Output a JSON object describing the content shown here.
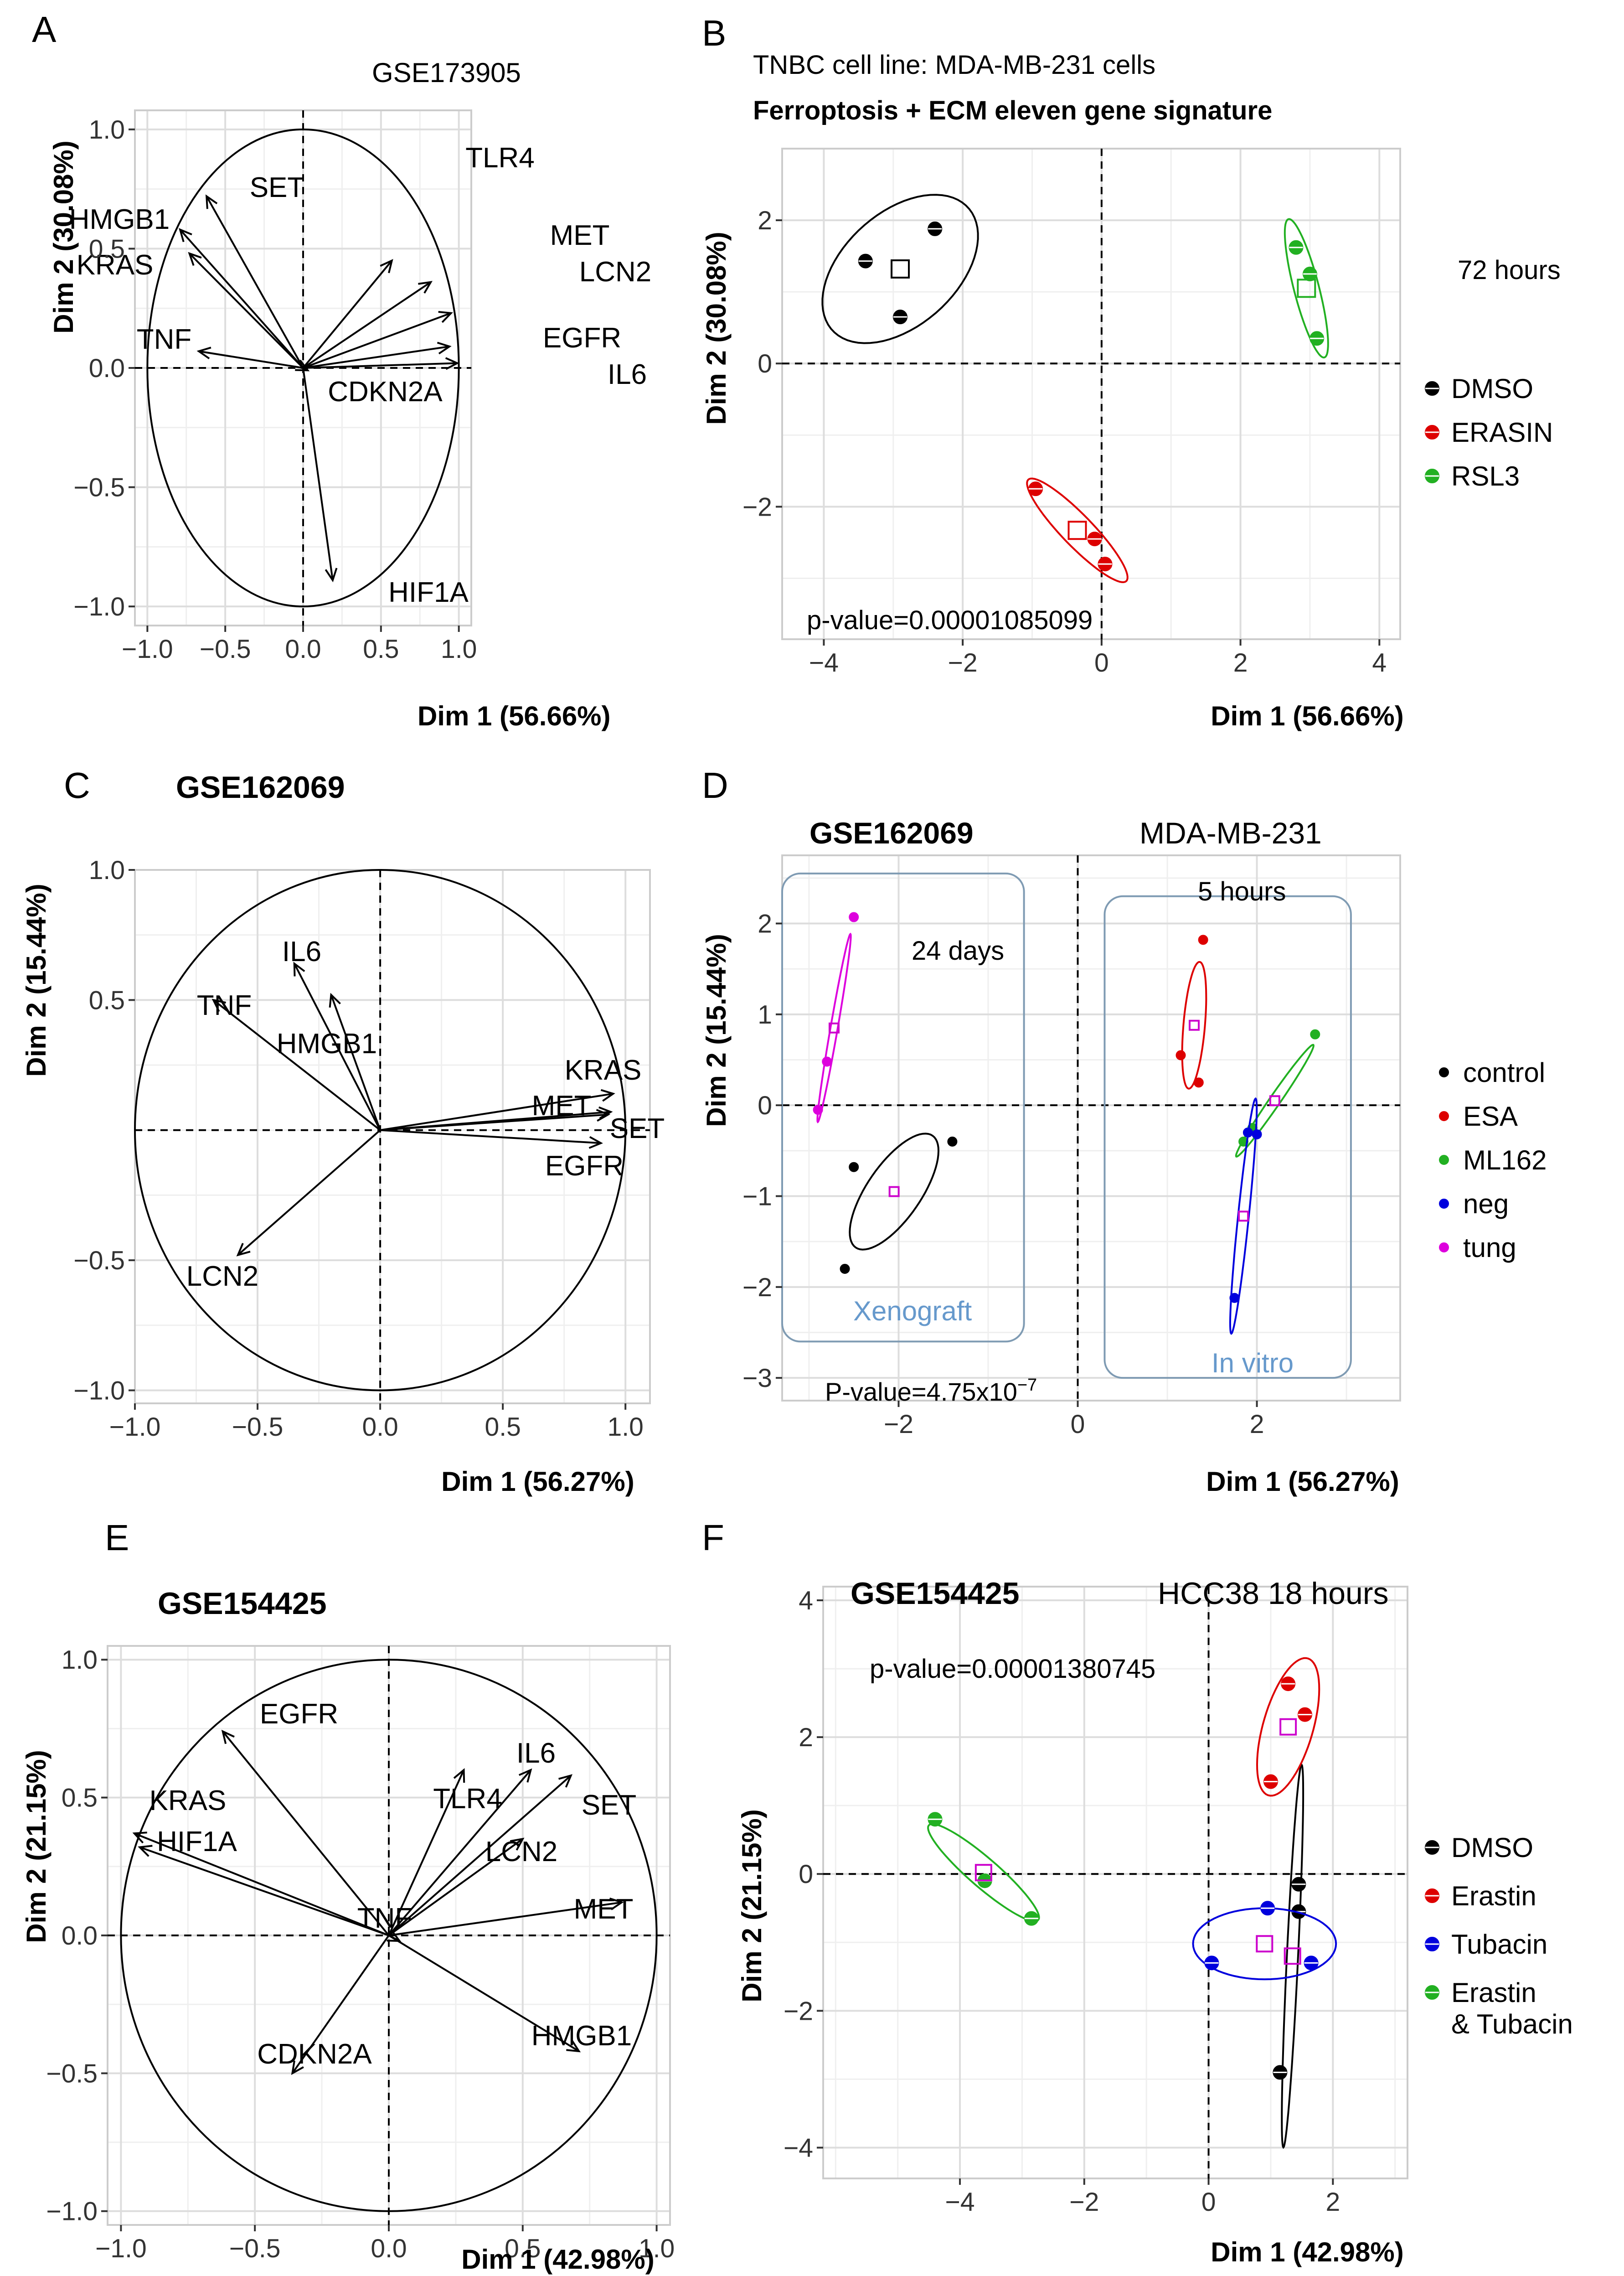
{
  "figure": {
    "panel_letters": [
      "A",
      "B",
      "C",
      "D",
      "E",
      "F"
    ]
  },
  "chart_data": [
    {
      "id": "A",
      "type": "scatter",
      "subtype": "pca-variables",
      "title": "GSE173905",
      "title_bold": false,
      "xlabel": "Dim 1 (56.66%)",
      "ylabel": "Dim 2 (30.08%)",
      "xlim": [
        -1.08,
        1.08
      ],
      "ylim": [
        -1.08,
        1.08
      ],
      "xticks": [
        -1.0,
        -0.5,
        0.0,
        0.5,
        1.0
      ],
      "yticks": [
        -1.0,
        -0.5,
        0.0,
        0.5,
        1.0
      ],
      "xtick_labels": [
        "−1.0",
        "−0.5",
        "0.0",
        "0.5",
        "1.0"
      ],
      "ytick_labels": [
        "−1.0",
        "−0.5",
        "0.0",
        "0.5",
        "1.0"
      ],
      "vectors": [
        {
          "label": "SET",
          "x": -0.62,
          "y": 0.72
        },
        {
          "label": "HMGB1",
          "x": -0.79,
          "y": 0.58
        },
        {
          "label": "KRAS",
          "x": -0.73,
          "y": 0.48
        },
        {
          "label": "TNF",
          "x": -0.67,
          "y": 0.07
        },
        {
          "label": "TLR4",
          "x": 0.57,
          "y": 0.45
        },
        {
          "label": "MET",
          "x": 0.82,
          "y": 0.36
        },
        {
          "label": "LCN2",
          "x": 0.95,
          "y": 0.23
        },
        {
          "label": "EGFR",
          "x": 0.94,
          "y": 0.09
        },
        {
          "label": "IL6",
          "x": 0.99,
          "y": 0.02
        },
        {
          "label": "CDKN2A",
          "x": 0.03,
          "y": -0.01
        },
        {
          "label": "HIF1A",
          "x": 0.19,
          "y": -0.89
        }
      ]
    },
    {
      "id": "B",
      "type": "scatter",
      "subtype": "pca-individuals",
      "title": "TNBC cell line: MDA-MB-231 cells",
      "subtitle": "Ferroptosis + ECM eleven gene signature",
      "annotation": "72 hours",
      "xlabel": "Dim 1 (56.66%)",
      "ylabel": "Dim 2 (30.08%)",
      "xlim": [
        -4.6,
        4.3
      ],
      "ylim": [
        -3.85,
        3.0
      ],
      "xticks": [
        -4,
        -2,
        0,
        2,
        4
      ],
      "yticks": [
        -2,
        0,
        2
      ],
      "xtick_labels": [
        "−4",
        "−2",
        "0",
        "2",
        "4"
      ],
      "ytick_labels": [
        "−2",
        "0",
        "2"
      ],
      "pvalue": "p-value=0.00001085099",
      "legend": [
        "DMSO",
        "ERASIN",
        "RSL3"
      ],
      "series": [
        {
          "name": "DMSO",
          "color": "#000000",
          "points": [
            [
              -3.4,
              1.43
            ],
            [
              -2.4,
              1.88
            ],
            [
              -2.9,
              0.65
            ]
          ],
          "center": [
            -2.9,
            1.32
          ],
          "ellipse": {
            "cx": -2.9,
            "cy": 1.32,
            "rx": 1.3,
            "ry": 0.8,
            "angle": 40
          }
        },
        {
          "name": "ERASIN",
          "color": "#dd0000",
          "points": [
            [
              -0.95,
              -1.75
            ],
            [
              0.05,
              -2.8
            ],
            [
              -0.1,
              -2.45
            ]
          ],
          "center": [
            -0.35,
            -2.33
          ],
          "ellipse": {
            "cx": -0.35,
            "cy": -2.33,
            "rx": 1.0,
            "ry": 0.22,
            "angle": -45
          }
        },
        {
          "name": "RSL3",
          "color": "#22b022",
          "points": [
            [
              2.8,
              1.62
            ],
            [
              3.1,
              0.35
            ],
            [
              3.0,
              1.25
            ]
          ],
          "center": [
            2.95,
            1.05
          ],
          "ellipse": {
            "cx": 2.95,
            "cy": 1.05,
            "rx": 1.0,
            "ry": 0.18,
            "angle": -75
          }
        }
      ]
    },
    {
      "id": "C",
      "type": "scatter",
      "subtype": "pca-variables",
      "title": "GSE162069",
      "title_bold": true,
      "xlabel": "Dim 1 (56.27%)",
      "ylabel": "Dim 2 (15.44%)",
      "xlim": [
        -1.0,
        1.1
      ],
      "ylim": [
        -1.05,
        1.0
      ],
      "xticks": [
        -1.0,
        -0.5,
        0.0,
        0.5,
        1.0
      ],
      "yticks": [
        -1.0,
        -0.5,
        0.5,
        1.0
      ],
      "xtick_labels": [
        "−1.0",
        "−0.5",
        "0.0",
        "0.5",
        "1.0"
      ],
      "ytick_labels": [
        "−1.0",
        "−0.5",
        "0.5",
        "1.0"
      ],
      "vectors": [
        {
          "label": "IL6",
          "x": -0.35,
          "y": 0.64
        },
        {
          "label": "TNF",
          "x": -0.68,
          "y": 0.5
        },
        {
          "label": "HMGB1",
          "x": -0.2,
          "y": 0.52
        },
        {
          "label": "KRAS",
          "x": 0.95,
          "y": 0.14
        },
        {
          "label": "MET",
          "x": 0.94,
          "y": 0.07
        },
        {
          "label": "SET",
          "x": 0.93,
          "y": 0.06
        },
        {
          "label": "EGFR",
          "x": 0.9,
          "y": -0.05
        },
        {
          "label": "LCN2",
          "x": -0.58,
          "y": -0.48
        }
      ]
    },
    {
      "id": "D",
      "type": "scatter",
      "subtype": "pca-individuals",
      "title": "GSE162069",
      "title_right": "MDA-MB-231",
      "xlabel": "Dim 1 (56.27%)",
      "ylabel": "Dim 2 (15.44%)",
      "xlim": [
        -3.3,
        3.6
      ],
      "ylim": [
        -3.25,
        2.75
      ],
      "xticks": [
        -2,
        0,
        2
      ],
      "yticks": [
        -3,
        -2,
        -1,
        0,
        1,
        2
      ],
      "xtick_labels": [
        "−2",
        "0",
        "2"
      ],
      "ytick_labels": [
        "−3",
        "−2",
        "−1",
        "0",
        "1",
        "2"
      ],
      "pvalue_prefix": "P-value=4.75x10",
      "pvalue_exp": "−7",
      "annotations": [
        "24 days",
        "5 hours"
      ],
      "group_boxes": [
        {
          "label": "Xenograft",
          "x0": -3.3,
          "x1": -0.6,
          "y0": -2.6,
          "y1": 2.55
        },
        {
          "label": "In vitro",
          "x0": 0.3,
          "x1": 3.05,
          "y0": -3.0,
          "y1": 2.3
        }
      ],
      "legend": [
        "control",
        "ESA",
        "ML162",
        "neg",
        "tung"
      ],
      "series": [
        {
          "name": "control",
          "color": "#000000",
          "points": [
            [
              -2.5,
              -0.68
            ],
            [
              -1.4,
              -0.4
            ],
            [
              -2.6,
              -1.8
            ]
          ],
          "center": [
            -2.05,
            -0.95
          ],
          "ellipse": {
            "cx": -2.05,
            "cy": -0.95,
            "rx": 0.75,
            "ry": 0.3,
            "angle": 55
          }
        },
        {
          "name": "ESA",
          "color": "#dd0000",
          "points": [
            [
              1.4,
              1.82
            ],
            [
              1.15,
              0.55
            ],
            [
              1.35,
              0.25
            ]
          ],
          "center": [
            1.3,
            0.88
          ],
          "ellipse": {
            "cx": 1.3,
            "cy": 0.88,
            "rx": 0.7,
            "ry": 0.12,
            "angle": 85
          }
        },
        {
          "name": "ML162",
          "color": "#22b022",
          "points": [
            [
              2.65,
              0.78
            ],
            [
              1.95,
              -0.25
            ],
            [
              1.85,
              -0.4
            ]
          ],
          "center": [
            2.2,
            0.05
          ],
          "ellipse": {
            "cx": 2.2,
            "cy": 0.05,
            "rx": 0.75,
            "ry": 0.06,
            "angle": 55
          }
        },
        {
          "name": "neg",
          "color": "#0000dd",
          "points": [
            [
              1.75,
              -2.12
            ],
            [
              2.0,
              -0.32
            ],
            [
              1.9,
              -0.3
            ]
          ],
          "center": [
            1.85,
            -1.22
          ],
          "ellipse": {
            "cx": 1.85,
            "cy": -1.22,
            "rx": 1.3,
            "ry": 0.06,
            "angle": 84
          }
        },
        {
          "name": "tung",
          "color": "#dd00dd",
          "points": [
            [
              -2.5,
              2.07
            ],
            [
              -2.8,
              0.48
            ],
            [
              -2.9,
              -0.05
            ]
          ],
          "center": [
            -2.72,
            0.85
          ],
          "ellipse": {
            "cx": -2.72,
            "cy": 0.85,
            "rx": 1.05,
            "ry": 0.04,
            "angle": 80
          }
        }
      ]
    },
    {
      "id": "E",
      "type": "scatter",
      "subtype": "pca-variables",
      "title": "GSE154425",
      "title_bold": true,
      "xlabel": "Dim 1 (42.98%)",
      "ylabel": "Dim 2 (21.15%)",
      "xlim": [
        -1.05,
        1.05
      ],
      "ylim": [
        -1.05,
        1.05
      ],
      "xticks": [
        -1.0,
        -0.5,
        0.0,
        0.5,
        1.0
      ],
      "yticks": [
        -1.0,
        -0.5,
        0.0,
        0.5,
        1.0
      ],
      "xtick_labels": [
        "−1.0",
        "−0.5",
        "0.0",
        "0.5",
        "1.0"
      ],
      "ytick_labels": [
        "−1.0",
        "−0.5",
        "0.0",
        "0.5",
        "1.0"
      ],
      "vectors": [
        {
          "label": "EGFR",
          "x": -0.62,
          "y": 0.74
        },
        {
          "label": "KRAS",
          "x": -0.95,
          "y": 0.37
        },
        {
          "label": "HIF1A",
          "x": -0.93,
          "y": 0.32
        },
        {
          "label": "TLR4",
          "x": 0.28,
          "y": 0.6
        },
        {
          "label": "IL6",
          "x": 0.53,
          "y": 0.6
        },
        {
          "label": "SET",
          "x": 0.68,
          "y": 0.58
        },
        {
          "label": "LCN2",
          "x": 0.5,
          "y": 0.35
        },
        {
          "label": "MET",
          "x": 0.87,
          "y": 0.12
        },
        {
          "label": "TNF",
          "x": 0.04,
          "y": -0.02
        },
        {
          "label": "HMGB1",
          "x": 0.71,
          "y": -0.42
        },
        {
          "label": "CDKN2A",
          "x": -0.36,
          "y": -0.5
        }
      ]
    },
    {
      "id": "F",
      "type": "scatter",
      "subtype": "pca-individuals",
      "title": "GSE154425",
      "title_right": "HCC38 18 hours",
      "xlabel": "Dim 1 (42.98%)",
      "ylabel": "Dim 2 (21.15%)",
      "xlim": [
        -6.2,
        3.2
      ],
      "ylim": [
        -4.45,
        4.2
      ],
      "xticks": [
        -4,
        -2,
        0,
        2
      ],
      "yticks": [
        -4,
        -2,
        0,
        2,
        4
      ],
      "xtick_labels": [
        "−4",
        "−2",
        "0",
        "2"
      ],
      "ytick_labels": [
        "−4",
        "−2",
        "0",
        "2",
        "4"
      ],
      "pvalue": "p-value=0.00001380745",
      "legend": [
        "DMSO",
        "Erastin",
        "Tubacin",
        "Erastin\n& Tubacin"
      ],
      "series": [
        {
          "name": "DMSO",
          "color": "#000000",
          "points": [
            [
              1.45,
              -0.15
            ],
            [
              1.45,
              -0.55
            ],
            [
              1.15,
              -2.9
            ]
          ],
          "center": [
            1.35,
            -1.2
          ],
          "ellipse": {
            "cx": 1.35,
            "cy": -1.2,
            "rx": 2.8,
            "ry": 0.09,
            "angle": 87
          }
        },
        {
          "name": "Erastin",
          "color": "#dd0000",
          "points": [
            [
              1.28,
              2.78
            ],
            [
              1.55,
              2.33
            ],
            [
              1.0,
              1.35
            ]
          ],
          "center": [
            1.28,
            2.15
          ],
          "ellipse": {
            "cx": 1.28,
            "cy": 2.15,
            "rx": 1.05,
            "ry": 0.4,
            "angle": 72
          }
        },
        {
          "name": "Tubacin",
          "color": "#0000dd",
          "points": [
            [
              0.95,
              -0.5
            ],
            [
              0.05,
              -1.3
            ],
            [
              1.65,
              -1.3
            ]
          ],
          "center": [
            0.9,
            -1.02
          ],
          "ellipse": {
            "cx": 0.9,
            "cy": -1.02,
            "rx": 1.15,
            "ry": 0.52,
            "angle": 0
          }
        },
        {
          "name": "Erastin & Tubacin",
          "color": "#22b022",
          "points": [
            [
              -4.4,
              0.8
            ],
            [
              -3.6,
              -0.1
            ],
            [
              -2.85,
              -0.65
            ]
          ],
          "center": [
            -3.62,
            0.02
          ],
          "ellipse": {
            "cx": -3.62,
            "cy": 0.02,
            "rx": 1.12,
            "ry": 0.22,
            "angle": -38
          }
        }
      ]
    }
  ]
}
